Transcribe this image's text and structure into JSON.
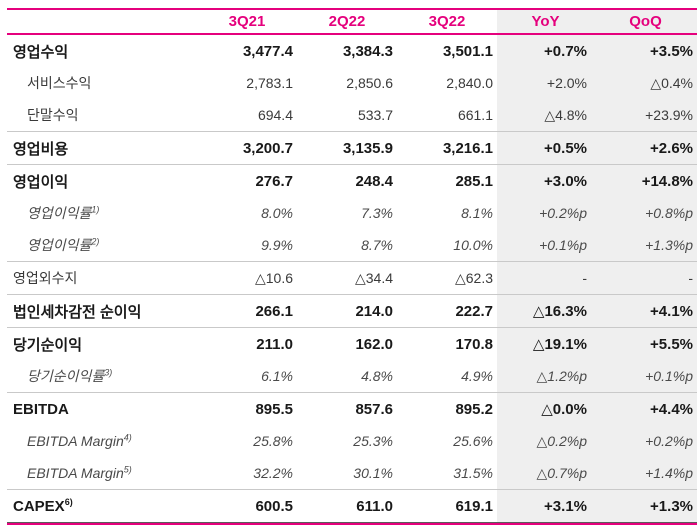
{
  "colors": {
    "accent": "#e5007d",
    "shade_bg": "#efefef",
    "divider": "#c9c9c9",
    "text": "#1c1c1c"
  },
  "table": {
    "columns": [
      "",
      "3Q21",
      "2Q22",
      "3Q22",
      "YoY",
      "QoQ"
    ],
    "rows": [
      {
        "label": "영업수익",
        "sup": "",
        "style": "bold",
        "indent": false,
        "divider": false,
        "values": [
          "3,477.4",
          "3,384.3",
          "3,501.1",
          "+0.7%",
          "+3.5%"
        ]
      },
      {
        "label": "서비스수익",
        "sup": "",
        "style": "plain",
        "indent": true,
        "divider": false,
        "values": [
          "2,783.1",
          "2,850.6",
          "2,840.0",
          "+2.0%",
          "△0.4%"
        ]
      },
      {
        "label": "단말수익",
        "sup": "",
        "style": "plain",
        "indent": true,
        "divider": true,
        "values": [
          "694.4",
          "533.7",
          "661.1",
          "△4.8%",
          "+23.9%"
        ]
      },
      {
        "label": "영업비용",
        "sup": "",
        "style": "bold",
        "indent": false,
        "divider": true,
        "values": [
          "3,200.7",
          "3,135.9",
          "3,216.1",
          "+0.5%",
          "+2.6%"
        ]
      },
      {
        "label": "영업이익",
        "sup": "",
        "style": "bold",
        "indent": false,
        "divider": false,
        "values": [
          "276.7",
          "248.4",
          "285.1",
          "+3.0%",
          "+14.8%"
        ]
      },
      {
        "label": "영업이익률",
        "sup": "1)",
        "style": "ital",
        "indent": true,
        "divider": false,
        "values": [
          "8.0%",
          "7.3%",
          "8.1%",
          "+0.2%p",
          "+0.8%p"
        ]
      },
      {
        "label": "영업이익률",
        "sup": "2)",
        "style": "ital",
        "indent": true,
        "divider": true,
        "values": [
          "9.9%",
          "8.7%",
          "10.0%",
          "+0.1%p",
          "+1.3%p"
        ]
      },
      {
        "label": "영업외수지",
        "sup": "",
        "style": "plain",
        "indent": false,
        "divider": true,
        "values": [
          "△10.6",
          "△34.4",
          "△62.3",
          "-",
          "-"
        ]
      },
      {
        "label": "법인세차감전 순이익",
        "sup": "",
        "style": "bold",
        "indent": false,
        "divider": true,
        "values": [
          "266.1",
          "214.0",
          "222.7",
          "△16.3%",
          "+4.1%"
        ]
      },
      {
        "label": "당기순이익",
        "sup": "",
        "style": "bold",
        "indent": false,
        "divider": false,
        "values": [
          "211.0",
          "162.0",
          "170.8",
          "△19.1%",
          "+5.5%"
        ]
      },
      {
        "label": "당기순이익률",
        "sup": "3)",
        "style": "ital",
        "indent": true,
        "divider": true,
        "values": [
          "6.1%",
          "4.8%",
          "4.9%",
          "△1.2%p",
          "+0.1%p"
        ]
      },
      {
        "label": "EBITDA",
        "sup": "",
        "style": "bold",
        "indent": false,
        "divider": false,
        "values": [
          "895.5",
          "857.6",
          "895.2",
          "△0.0%",
          "+4.4%"
        ]
      },
      {
        "label": "EBITDA Margin",
        "sup": "4)",
        "style": "ital",
        "indent": true,
        "divider": false,
        "values": [
          "25.8%",
          "25.3%",
          "25.6%",
          "△0.2%p",
          "+0.2%p"
        ]
      },
      {
        "label": "EBITDA Margin",
        "sup": "5)",
        "style": "ital",
        "indent": true,
        "divider": true,
        "values": [
          "32.2%",
          "30.1%",
          "31.5%",
          "△0.7%p",
          "+1.4%p"
        ]
      },
      {
        "label": "CAPEX",
        "sup": "6)",
        "style": "bold",
        "indent": false,
        "divider": false,
        "values": [
          "600.5",
          "611.0",
          "619.1",
          "+3.1%",
          "+1.3%"
        ]
      }
    ]
  }
}
